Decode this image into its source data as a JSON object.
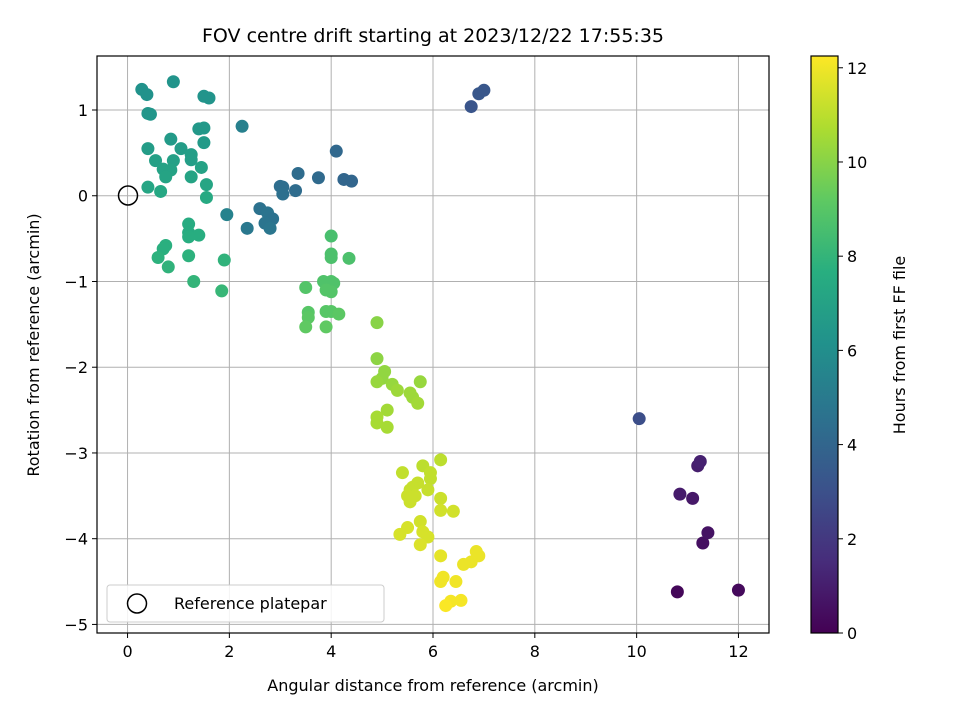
{
  "chart_data": {
    "type": "scatter",
    "title": "FOV centre drift starting at 2023/12/22 17:55:35",
    "xlabel": "Angular distance from reference (arcmin)",
    "ylabel": "Rotation from reference (arcmin)",
    "xlim": [
      -0.6,
      12.6
    ],
    "ylim": [
      -5.1,
      1.63
    ],
    "xticks": [
      0,
      2,
      4,
      6,
      8,
      10,
      12
    ],
    "yticks": [
      1,
      0,
      -1,
      -2,
      -3,
      -4,
      -5
    ],
    "xtick_labels": [
      "0",
      "2",
      "4",
      "6",
      "8",
      "10",
      "12"
    ],
    "ytick_labels": [
      "1",
      "0",
      "−1",
      "−2",
      "−3",
      "−4",
      "−5"
    ],
    "grid": true,
    "colorbar": {
      "label": "Hours from first FF file",
      "colormap": "viridis",
      "range": [
        0,
        12.25
      ],
      "ticks": [
        0,
        2,
        4,
        6,
        8,
        10,
        12
      ],
      "tick_labels": [
        "0",
        "2",
        "4",
        "6",
        "8",
        "10",
        "12"
      ]
    },
    "legend": {
      "placement": "lower-left",
      "entries": [
        "Reference platepar"
      ]
    },
    "reference_point": {
      "x": 0,
      "y": 0,
      "name": "Reference platepar"
    },
    "points": [
      {
        "x": 10.8,
        "y": -4.62,
        "c": 0.2
      },
      {
        "x": 12.0,
        "y": -4.6,
        "c": 0.3
      },
      {
        "x": 11.3,
        "y": -4.05,
        "c": 0.5
      },
      {
        "x": 11.4,
        "y": -3.93,
        "c": 0.6
      },
      {
        "x": 11.1,
        "y": -3.53,
        "c": 0.8
      },
      {
        "x": 10.85,
        "y": -3.48,
        "c": 0.9
      },
      {
        "x": 11.2,
        "y": -3.15,
        "c": 1.0
      },
      {
        "x": 11.25,
        "y": -3.1,
        "c": 1.1
      },
      {
        "x": 10.05,
        "y": -2.6,
        "c": 2.9
      },
      {
        "x": 6.75,
        "y": 1.04,
        "c": 3.2
      },
      {
        "x": 6.9,
        "y": 1.19,
        "c": 3.3
      },
      {
        "x": 7.0,
        "y": 1.23,
        "c": 3.3
      },
      {
        "x": 4.1,
        "y": 0.52,
        "c": 4.1
      },
      {
        "x": 4.25,
        "y": 0.19,
        "c": 4.0
      },
      {
        "x": 4.4,
        "y": 0.17,
        "c": 4.0
      },
      {
        "x": 3.75,
        "y": 0.21,
        "c": 4.2
      },
      {
        "x": 3.35,
        "y": 0.26,
        "c": 4.3
      },
      {
        "x": 3.3,
        "y": 0.06,
        "c": 4.3
      },
      {
        "x": 3.0,
        "y": 0.11,
        "c": 4.4
      },
      {
        "x": 3.05,
        "y": 0.1,
        "c": 4.4
      },
      {
        "x": 3.05,
        "y": 0.02,
        "c": 4.5
      },
      {
        "x": 2.6,
        "y": -0.15,
        "c": 4.6
      },
      {
        "x": 2.75,
        "y": -0.2,
        "c": 4.7
      },
      {
        "x": 2.85,
        "y": -0.27,
        "c": 4.6
      },
      {
        "x": 2.7,
        "y": -0.32,
        "c": 4.7
      },
      {
        "x": 2.8,
        "y": -0.38,
        "c": 4.8
      },
      {
        "x": 2.35,
        "y": -0.38,
        "c": 4.9
      },
      {
        "x": 2.25,
        "y": 0.81,
        "c": 5.3
      },
      {
        "x": 1.95,
        "y": -0.22,
        "c": 5.4
      },
      {
        "x": 0.28,
        "y": 1.24,
        "c": 6.2
      },
      {
        "x": 0.38,
        "y": 1.18,
        "c": 6.2
      },
      {
        "x": 0.9,
        "y": 1.33,
        "c": 6.3
      },
      {
        "x": 1.5,
        "y": 1.16,
        "c": 6.3
      },
      {
        "x": 1.6,
        "y": 1.14,
        "c": 6.3
      },
      {
        "x": 0.4,
        "y": 0.96,
        "c": 6.4
      },
      {
        "x": 0.45,
        "y": 0.95,
        "c": 6.4
      },
      {
        "x": 1.4,
        "y": 0.78,
        "c": 6.5
      },
      {
        "x": 1.5,
        "y": 0.79,
        "c": 6.5
      },
      {
        "x": 0.85,
        "y": 0.66,
        "c": 6.6
      },
      {
        "x": 1.5,
        "y": 0.62,
        "c": 6.6
      },
      {
        "x": 0.4,
        "y": 0.55,
        "c": 6.7
      },
      {
        "x": 1.05,
        "y": 0.55,
        "c": 6.7
      },
      {
        "x": 1.25,
        "y": 0.48,
        "c": 6.8
      },
      {
        "x": 1.25,
        "y": 0.42,
        "c": 6.8
      },
      {
        "x": 0.55,
        "y": 0.41,
        "c": 6.9
      },
      {
        "x": 0.9,
        "y": 0.41,
        "c": 6.9
      },
      {
        "x": 1.45,
        "y": 0.33,
        "c": 7.0
      },
      {
        "x": 0.7,
        "y": 0.31,
        "c": 7.0
      },
      {
        "x": 0.85,
        "y": 0.3,
        "c": 7.0
      },
      {
        "x": 0.75,
        "y": 0.22,
        "c": 7.1
      },
      {
        "x": 1.25,
        "y": 0.22,
        "c": 7.1
      },
      {
        "x": 1.55,
        "y": 0.13,
        "c": 7.2
      },
      {
        "x": 0.4,
        "y": 0.1,
        "c": 7.2
      },
      {
        "x": 0.65,
        "y": 0.05,
        "c": 7.3
      },
      {
        "x": 1.55,
        "y": -0.02,
        "c": 7.4
      },
      {
        "x": 1.2,
        "y": -0.33,
        "c": 7.5
      },
      {
        "x": 1.2,
        "y": -0.43,
        "c": 7.5
      },
      {
        "x": 1.4,
        "y": -0.46,
        "c": 7.6
      },
      {
        "x": 1.2,
        "y": -0.48,
        "c": 7.6
      },
      {
        "x": 0.75,
        "y": -0.58,
        "c": 7.7
      },
      {
        "x": 0.7,
        "y": -0.62,
        "c": 7.7
      },
      {
        "x": 1.2,
        "y": -0.7,
        "c": 7.8
      },
      {
        "x": 0.6,
        "y": -0.72,
        "c": 7.8
      },
      {
        "x": 1.9,
        "y": -0.75,
        "c": 7.9
      },
      {
        "x": 0.8,
        "y": -0.83,
        "c": 7.9
      },
      {
        "x": 1.3,
        "y": -1.0,
        "c": 8.0
      },
      {
        "x": 1.85,
        "y": -1.11,
        "c": 8.1
      },
      {
        "x": 4.0,
        "y": -0.47,
        "c": 8.6
      },
      {
        "x": 4.0,
        "y": -0.68,
        "c": 8.7
      },
      {
        "x": 4.0,
        "y": -0.72,
        "c": 8.7
      },
      {
        "x": 4.35,
        "y": -0.73,
        "c": 8.7
      },
      {
        "x": 3.85,
        "y": -1.0,
        "c": 8.8
      },
      {
        "x": 4.0,
        "y": -1.0,
        "c": 8.8
      },
      {
        "x": 4.05,
        "y": -1.02,
        "c": 8.8
      },
      {
        "x": 3.9,
        "y": -1.1,
        "c": 8.9
      },
      {
        "x": 3.5,
        "y": -1.07,
        "c": 8.9
      },
      {
        "x": 4.0,
        "y": -1.12,
        "c": 8.9
      },
      {
        "x": 3.55,
        "y": -1.36,
        "c": 9.0
      },
      {
        "x": 3.9,
        "y": -1.35,
        "c": 9.0
      },
      {
        "x": 4.0,
        "y": -1.35,
        "c": 9.0
      },
      {
        "x": 4.15,
        "y": -1.38,
        "c": 9.1
      },
      {
        "x": 3.55,
        "y": -1.42,
        "c": 9.1
      },
      {
        "x": 3.5,
        "y": -1.53,
        "c": 9.2
      },
      {
        "x": 3.9,
        "y": -1.53,
        "c": 9.2
      },
      {
        "x": 4.9,
        "y": -1.48,
        "c": 10.0
      },
      {
        "x": 4.9,
        "y": -1.9,
        "c": 10.1
      },
      {
        "x": 5.05,
        "y": -2.05,
        "c": 10.2
      },
      {
        "x": 5.0,
        "y": -2.13,
        "c": 10.2
      },
      {
        "x": 4.9,
        "y": -2.17,
        "c": 10.3
      },
      {
        "x": 5.75,
        "y": -2.17,
        "c": 10.3
      },
      {
        "x": 5.2,
        "y": -2.2,
        "c": 10.3
      },
      {
        "x": 5.3,
        "y": -2.27,
        "c": 10.4
      },
      {
        "x": 5.55,
        "y": -2.3,
        "c": 10.4
      },
      {
        "x": 5.6,
        "y": -2.35,
        "c": 10.4
      },
      {
        "x": 5.7,
        "y": -2.42,
        "c": 10.5
      },
      {
        "x": 5.1,
        "y": -2.5,
        "c": 10.5
      },
      {
        "x": 4.9,
        "y": -2.58,
        "c": 10.6
      },
      {
        "x": 4.9,
        "y": -2.65,
        "c": 10.6
      },
      {
        "x": 5.1,
        "y": -2.7,
        "c": 10.6
      },
      {
        "x": 6.15,
        "y": -3.08,
        "c": 11.0
      },
      {
        "x": 5.8,
        "y": -3.15,
        "c": 11.0
      },
      {
        "x": 5.4,
        "y": -3.23,
        "c": 11.1
      },
      {
        "x": 5.95,
        "y": -3.23,
        "c": 11.1
      },
      {
        "x": 5.95,
        "y": -3.3,
        "c": 11.1
      },
      {
        "x": 5.7,
        "y": -3.35,
        "c": 11.2
      },
      {
        "x": 5.6,
        "y": -3.4,
        "c": 11.2
      },
      {
        "x": 5.55,
        "y": -3.43,
        "c": 11.2
      },
      {
        "x": 5.9,
        "y": -3.43,
        "c": 11.2
      },
      {
        "x": 5.5,
        "y": -3.5,
        "c": 11.3
      },
      {
        "x": 5.65,
        "y": -3.5,
        "c": 11.3
      },
      {
        "x": 6.15,
        "y": -3.53,
        "c": 11.3
      },
      {
        "x": 5.55,
        "y": -3.57,
        "c": 11.3
      },
      {
        "x": 6.15,
        "y": -3.67,
        "c": 11.4
      },
      {
        "x": 6.4,
        "y": -3.68,
        "c": 11.4
      },
      {
        "x": 5.75,
        "y": -3.8,
        "c": 11.4
      },
      {
        "x": 5.5,
        "y": -3.87,
        "c": 11.5
      },
      {
        "x": 5.8,
        "y": -3.92,
        "c": 11.5
      },
      {
        "x": 5.35,
        "y": -3.95,
        "c": 11.5
      },
      {
        "x": 5.9,
        "y": -3.98,
        "c": 11.5
      },
      {
        "x": 5.75,
        "y": -4.07,
        "c": 11.6
      },
      {
        "x": 6.15,
        "y": -4.2,
        "c": 11.8
      },
      {
        "x": 6.85,
        "y": -4.15,
        "c": 11.9
      },
      {
        "x": 6.9,
        "y": -4.2,
        "c": 11.9
      },
      {
        "x": 6.75,
        "y": -4.27,
        "c": 11.9
      },
      {
        "x": 6.6,
        "y": -4.3,
        "c": 11.9
      },
      {
        "x": 6.2,
        "y": -4.45,
        "c": 12.0
      },
      {
        "x": 6.15,
        "y": -4.5,
        "c": 12.0
      },
      {
        "x": 6.45,
        "y": -4.5,
        "c": 12.0
      },
      {
        "x": 6.55,
        "y": -4.72,
        "c": 12.1
      },
      {
        "x": 6.35,
        "y": -4.73,
        "c": 12.1
      },
      {
        "x": 6.25,
        "y": -4.78,
        "c": 12.2
      }
    ]
  }
}
